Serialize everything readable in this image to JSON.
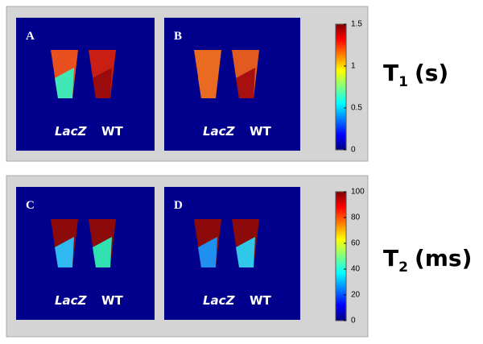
{
  "rows": [
    {
      "panels": [
        {
          "label": "A",
          "left": "LacZ",
          "right": "WT"
        },
        {
          "label": "B",
          "left": "LacZ",
          "right": "WT"
        }
      ],
      "colorbar_ticks": [
        1.5,
        1,
        0.5,
        0
      ],
      "quantity": {
        "symbol": "T",
        "subscript": "1",
        "unit": "(s)"
      }
    },
    {
      "panels": [
        {
          "label": "C",
          "left": "LacZ",
          "right": "WT"
        },
        {
          "label": "D",
          "left": "LacZ",
          "right": "WT"
        }
      ],
      "colorbar_ticks": [
        100,
        80,
        60,
        40,
        20,
        0
      ],
      "quantity": {
        "symbol": "T",
        "subscript": "2",
        "unit": "(ms)"
      }
    }
  ]
}
